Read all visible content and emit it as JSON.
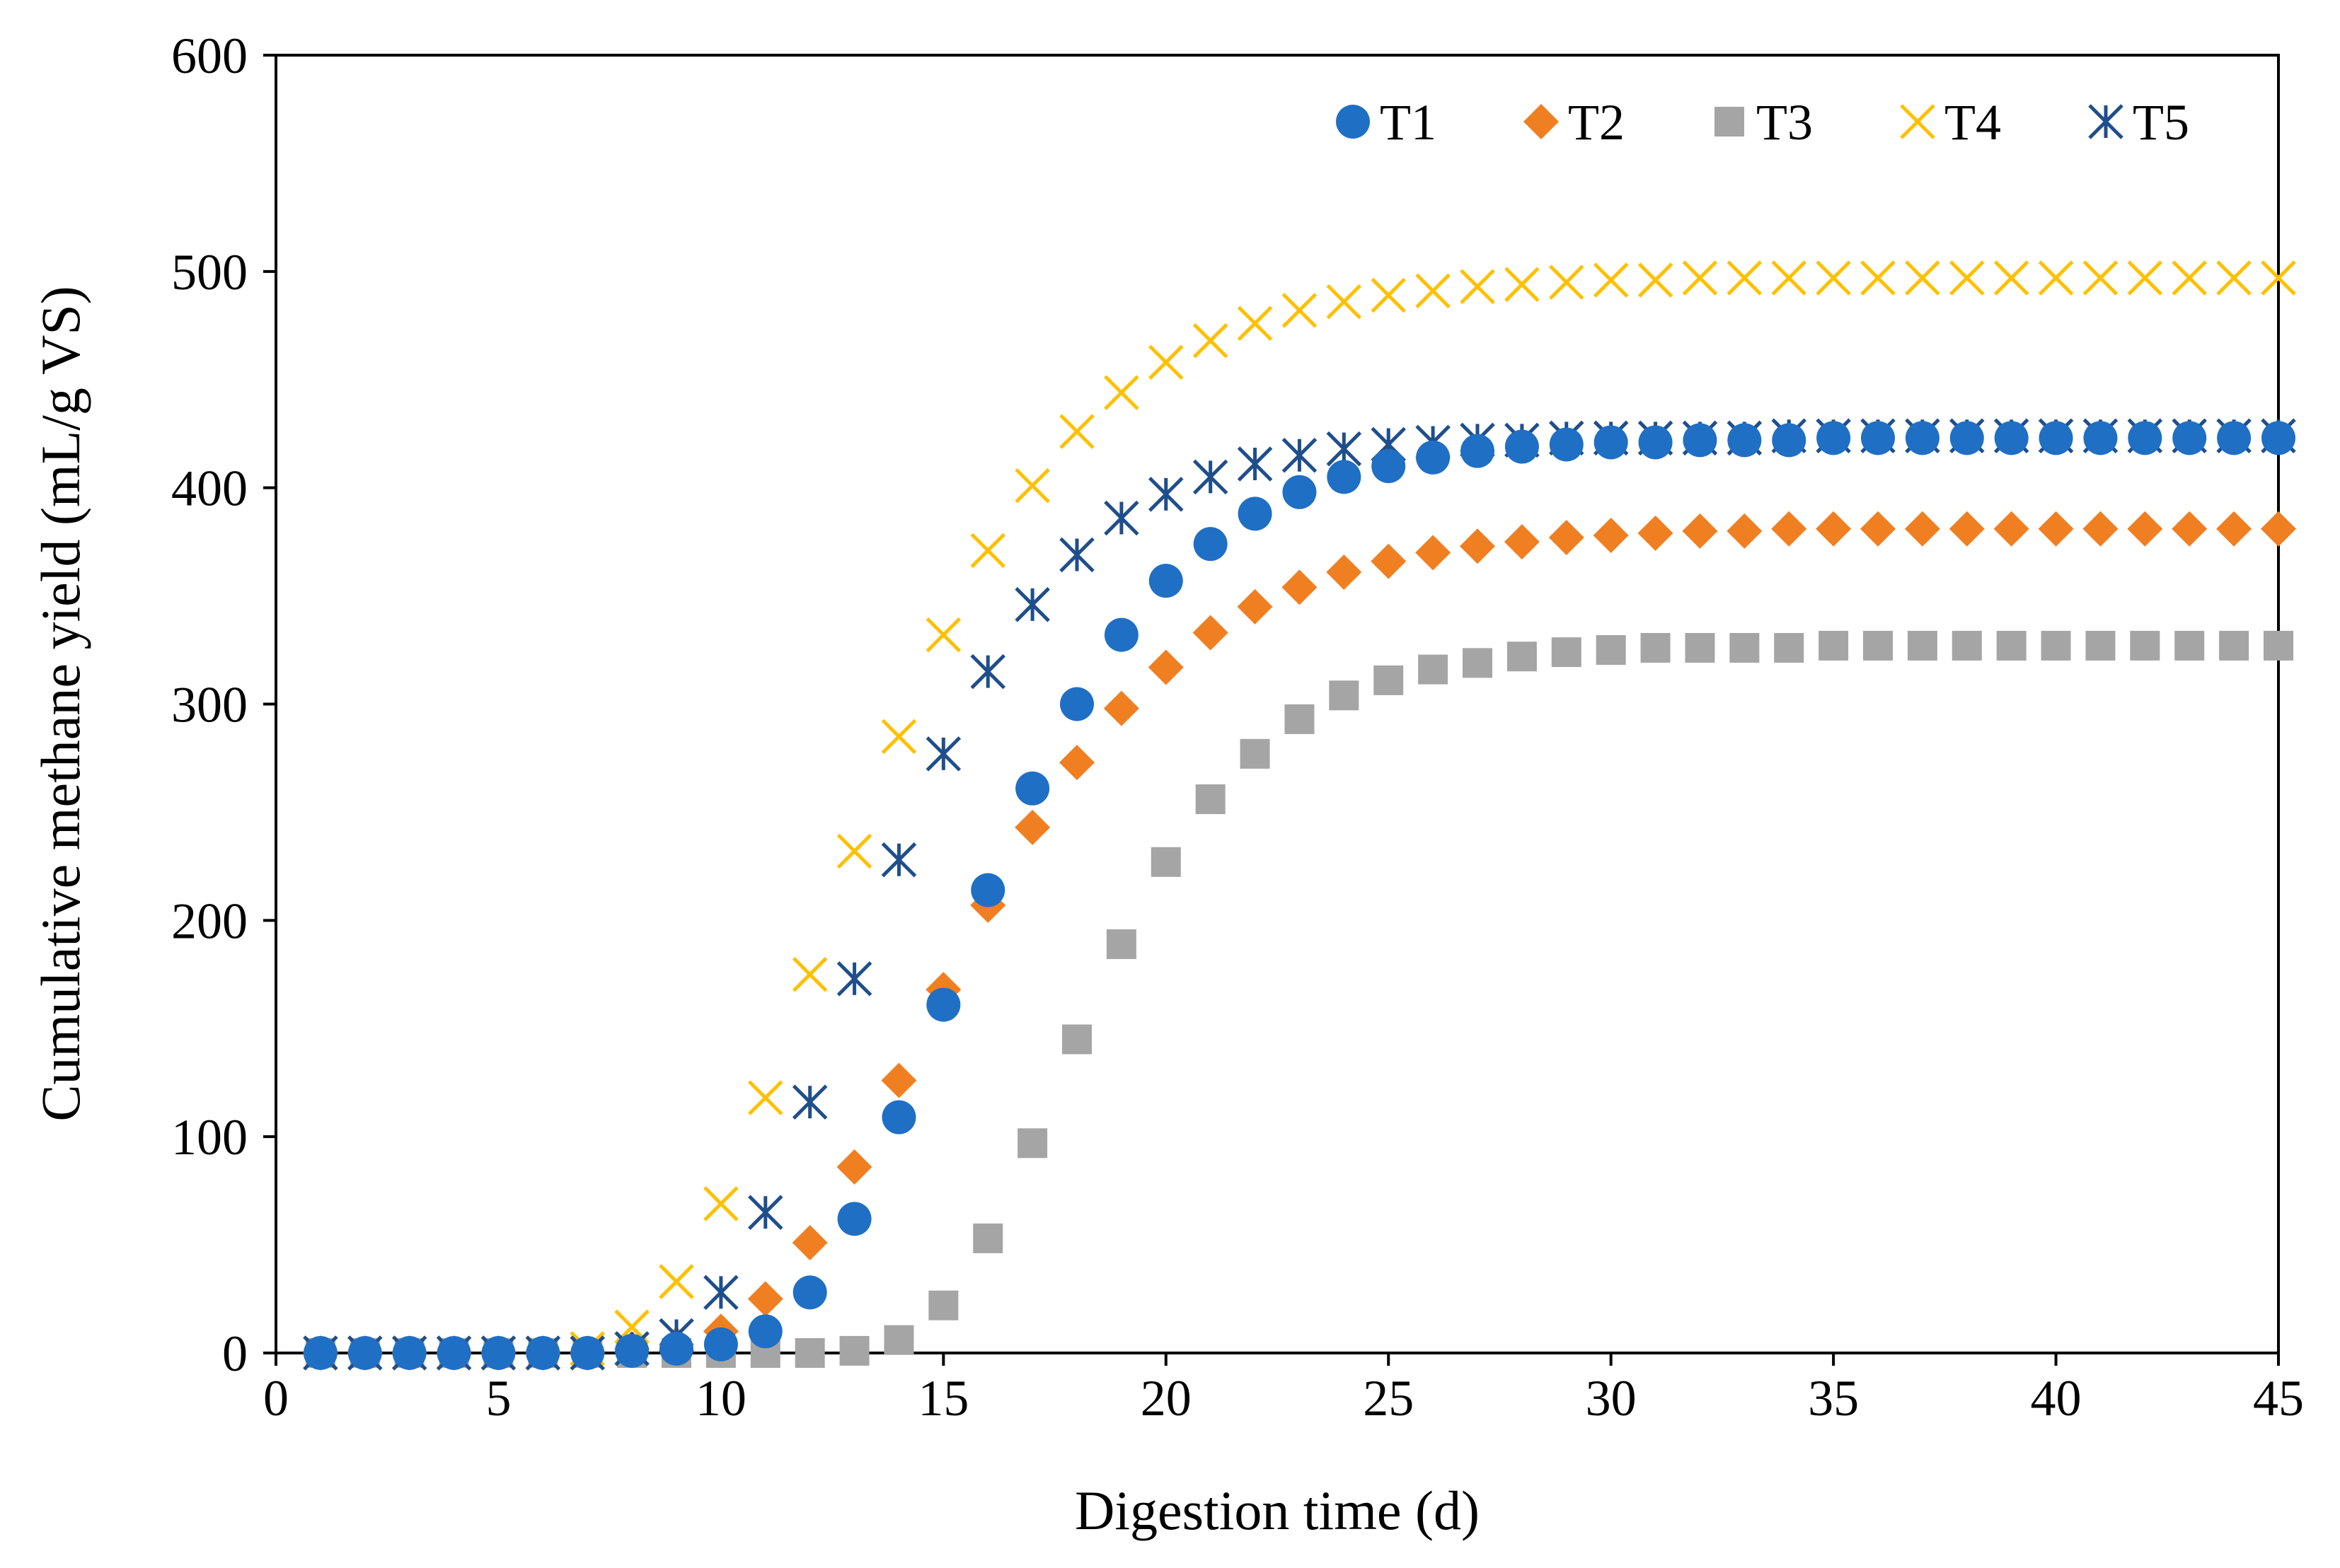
{
  "chart_data": {
    "type": "scatter",
    "title": "",
    "xlabel": "Digestion time (d)",
    "ylabel": "Cumulative methane yield (mL/g VS)",
    "xlim": [
      0,
      45
    ],
    "ylim": [
      0,
      600
    ],
    "xticks": [
      0,
      5,
      10,
      15,
      20,
      25,
      30,
      35,
      40,
      45
    ],
    "yticks": [
      0,
      100,
      200,
      300,
      400,
      500,
      600
    ],
    "grid": false,
    "legend_position": "top-right",
    "x": [
      1,
      2,
      3,
      4,
      5,
      6,
      7,
      8,
      9,
      10,
      11,
      12,
      13,
      14,
      15,
      16,
      17,
      18,
      19,
      20,
      21,
      22,
      23,
      24,
      25,
      26,
      27,
      28,
      29,
      30,
      31,
      32,
      33,
      34,
      35,
      36,
      37,
      38,
      39,
      40,
      41,
      42,
      43,
      44,
      45
    ],
    "series": [
      {
        "name": "T1",
        "marker": "circle",
        "color": "#1f6fc5",
        "values": [
          0,
          0,
          0,
          0,
          0,
          0,
          0,
          1,
          2,
          4,
          10,
          28,
          62,
          109,
          161,
          214,
          261,
          300,
          332,
          357,
          374,
          388,
          398,
          405,
          410,
          414,
          417,
          419,
          420,
          421,
          421,
          422,
          422,
          422,
          423,
          423,
          423,
          423,
          423,
          423,
          423,
          423,
          423,
          423,
          423
        ]
      },
      {
        "name": "T2",
        "marker": "diamond",
        "color": "#f07f22",
        "values": [
          0,
          0,
          0,
          0,
          0,
          0,
          0,
          2,
          4,
          10,
          25,
          51,
          86,
          126,
          168,
          207,
          243,
          273,
          298,
          317,
          333,
          345,
          354,
          361,
          366,
          370,
          373,
          375,
          377,
          378,
          379,
          380,
          380,
          381,
          381,
          381,
          381,
          381,
          381,
          381,
          381,
          381,
          381,
          381,
          381
        ]
      },
      {
        "name": "T3",
        "marker": "square",
        "color": "#a5a5a5",
        "values": [
          0,
          0,
          0,
          0,
          0,
          0,
          0,
          0,
          0,
          0,
          0,
          0,
          1,
          6,
          22,
          53,
          97,
          145,
          189,
          227,
          256,
          277,
          293,
          304,
          311,
          316,
          319,
          322,
          324,
          325,
          326,
          326,
          326,
          326,
          327,
          327,
          327,
          327,
          327,
          327,
          327,
          327,
          327,
          327,
          327
        ]
      },
      {
        "name": "T4",
        "marker": "x",
        "color": "#ffc000",
        "values": [
          0,
          0,
          0,
          0,
          0,
          0,
          2,
          12,
          33,
          69,
          118,
          175,
          232,
          285,
          332,
          371,
          401,
          426,
          444,
          458,
          468,
          476,
          482,
          486,
          489,
          491,
          493,
          494,
          495,
          496,
          496,
          497,
          497,
          497,
          497,
          497,
          497,
          497,
          497,
          497,
          497,
          497,
          497,
          497,
          497
        ]
      },
      {
        "name": "T5",
        "marker": "asterisk",
        "color": "#1f4e8c",
        "values": [
          0,
          0,
          0,
          0,
          0,
          0,
          0,
          2,
          8,
          28,
          65,
          116,
          173,
          228,
          277,
          315,
          346,
          369,
          386,
          397,
          405,
          411,
          415,
          418,
          420,
          421,
          422,
          422,
          423,
          423,
          423,
          423,
          423,
          424,
          424,
          424,
          424,
          424,
          424,
          424,
          424,
          424,
          424,
          424,
          424
        ]
      }
    ]
  }
}
